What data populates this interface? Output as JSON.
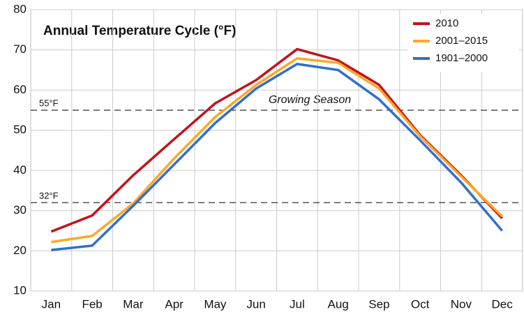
{
  "chart_data": {
    "type": "line",
    "title": "Annual Temperature Cycle (°F)",
    "categories": [
      "Jan",
      "Feb",
      "Mar",
      "Apr",
      "May",
      "Jun",
      "Jul",
      "Aug",
      "Sep",
      "Oct",
      "Nov",
      "Dec"
    ],
    "series": [
      {
        "name": "2010",
        "color": "#c3121b",
        "values": [
          24.8,
          28.8,
          38.8,
          47.8,
          56.7,
          62.5,
          70.2,
          67.4,
          61.3,
          48.8,
          38.8,
          28.1
        ]
      },
      {
        "name": "2001–2015",
        "color": "#ffa726",
        "values": [
          22.2,
          23.7,
          31.8,
          43.0,
          53.3,
          61.3,
          67.9,
          66.8,
          60.4,
          48.5,
          38.5,
          28.6
        ]
      },
      {
        "name": "1901–2000",
        "color": "#2f6fce",
        "values": [
          20.2,
          21.3,
          31.2,
          41.5,
          51.8,
          60.4,
          66.5,
          65.0,
          57.7,
          47.5,
          37.0,
          25.0
        ]
      }
    ],
    "ylim": [
      10,
      80
    ],
    "yticks": [
      10,
      20,
      30,
      40,
      50,
      60,
      70,
      80
    ],
    "grid": true,
    "reference_lines": [
      {
        "value": 55,
        "label": "55°F"
      },
      {
        "value": 32,
        "label": "32°F"
      }
    ],
    "annotation": "Growing Season",
    "legend_position": "upper right"
  }
}
